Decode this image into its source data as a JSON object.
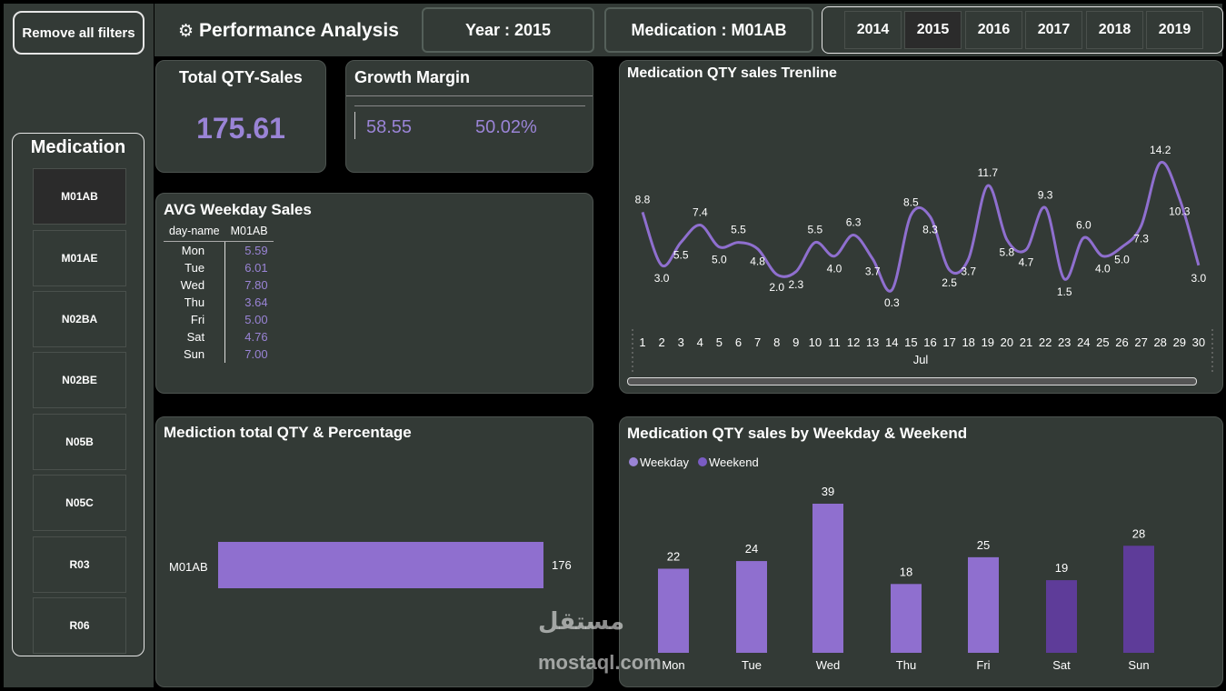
{
  "sidebar": {
    "remove_filters": "Remove all filters",
    "medication_title": "Medication",
    "items": [
      "M01AB",
      "M01AE",
      "N02BA",
      "N02BE",
      "N05B",
      "N05C",
      "R03",
      "R06"
    ],
    "selected": "M01AB"
  },
  "header": {
    "title": "Performance Analysis",
    "year_filter": "Year : 2015",
    "med_filter": "Medication : M01AB",
    "years": [
      "2014",
      "2015",
      "2016",
      "2017",
      "2018",
      "2019"
    ],
    "selected_year": "2015"
  },
  "kpi": {
    "total_title": "Total QTY-Sales",
    "total_value": "175.61",
    "growth_title": "Growth Margin",
    "growth_value": "58.55",
    "growth_pct": "50.02%"
  },
  "weekday_table": {
    "title": "AVG Weekday Sales",
    "col1": "day-name",
    "col2": "M01AB",
    "rows": [
      {
        "day": "Mon",
        "val": "5.59"
      },
      {
        "day": "Tue",
        "val": "6.01"
      },
      {
        "day": "Wed",
        "val": "7.80"
      },
      {
        "day": "Thu",
        "val": "3.64"
      },
      {
        "day": "Fri",
        "val": "5.00"
      },
      {
        "day": "Sat",
        "val": "4.76"
      },
      {
        "day": "Sun",
        "val": "7.00"
      }
    ]
  },
  "colors": {
    "accent": "#8f6fcf",
    "weekend": "#5e3c99",
    "panel": "#333a36"
  },
  "chart_data": [
    {
      "type": "line",
      "title": "Medication QTY sales Trenline",
      "xlabel": "Jul",
      "x": [
        1,
        2,
        3,
        4,
        5,
        6,
        7,
        8,
        9,
        10,
        11,
        12,
        13,
        14,
        15,
        16,
        17,
        18,
        19,
        20,
        21,
        22,
        23,
        24,
        25,
        26,
        27,
        28,
        29,
        30
      ],
      "values": [
        8.8,
        3.0,
        5.5,
        7.4,
        5.0,
        5.5,
        4.8,
        2.0,
        2.3,
        5.5,
        4.0,
        6.3,
        3.7,
        0.3,
        8.5,
        8.3,
        2.5,
        3.7,
        11.7,
        5.8,
        4.7,
        9.3,
        1.5,
        6.0,
        4.0,
        5.0,
        7.3,
        14.2,
        10.3,
        3.0
      ],
      "labels": [
        "8.8",
        "3.0",
        "5.5",
        "7.4",
        "5.0",
        "5.5",
        "4.8",
        "2.0",
        "2.3",
        "5.5",
        "4.0",
        "6.3",
        "3.7",
        "0.3",
        "8.5",
        "8.3",
        "2.5",
        "3.7",
        "11.7",
        "5.8",
        "4.7",
        "9.3",
        "1.5",
        "6.0",
        "4.0",
        "5.0",
        "7.3",
        "14.2",
        "10.3",
        "3.0"
      ]
    },
    {
      "type": "bar",
      "orientation": "horizontal",
      "title": "Mediction total QTY & Percentage",
      "categories": [
        "M01AB"
      ],
      "values": [
        176
      ],
      "labels": [
        "176"
      ]
    },
    {
      "type": "bar",
      "title": "Medication QTY sales by Weekday & Weekend",
      "legend": [
        "Weekday",
        "Weekend"
      ],
      "categories": [
        "Mon",
        "Tue",
        "Wed",
        "Thu",
        "Fri",
        "Sat",
        "Sun"
      ],
      "values": [
        22,
        24,
        39,
        18,
        25,
        19,
        28
      ],
      "group": [
        "Weekday",
        "Weekday",
        "Weekday",
        "Weekday",
        "Weekday",
        "Weekend",
        "Weekend"
      ]
    }
  ],
  "watermark": {
    "line1": "مستقل",
    "line2": "mostaql.com"
  }
}
